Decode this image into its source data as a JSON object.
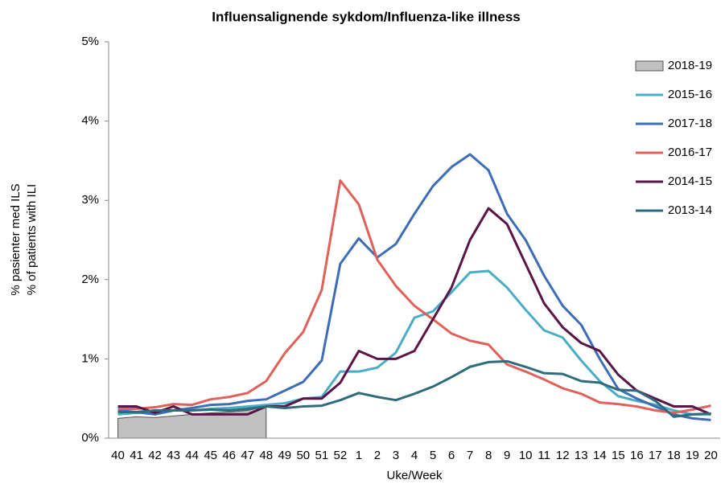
{
  "chart_data": {
    "type": "line",
    "title": "Influensalignende sykdom/Influenza-like illness",
    "x_label": "Uke/Week",
    "y_label": [
      "% pasienter med ILS",
      "% of patients with ILI"
    ],
    "categories": [
      "40",
      "41",
      "42",
      "43",
      "44",
      "45",
      "46",
      "47",
      "48",
      "49",
      "50",
      "51",
      "52",
      "1",
      "2",
      "3",
      "4",
      "5",
      "6",
      "7",
      "8",
      "9",
      "10",
      "11",
      "12",
      "13",
      "14",
      "15",
      "16",
      "17",
      "18",
      "19",
      "20"
    ],
    "ylim": [
      0,
      5
    ],
    "yticks": [
      {
        "value": 0,
        "label": "0%"
      },
      {
        "value": 1,
        "label": "1%"
      },
      {
        "value": 2,
        "label": "2%"
      },
      {
        "value": 3,
        "label": "3%"
      },
      {
        "value": 4,
        "label": "4%"
      },
      {
        "value": 5,
        "label": "5%"
      }
    ],
    "legend": "upper right",
    "series": [
      {
        "name": "2018-19",
        "type": "area",
        "color": "#c0c0c0",
        "values": [
          0.25,
          0.27,
          0.26,
          0.28,
          0.3,
          0.32,
          0.33,
          0.35,
          0.4,
          null,
          null,
          null,
          null,
          null,
          null,
          null,
          null,
          null,
          null,
          null,
          null,
          null,
          null,
          null,
          null,
          null,
          null,
          null,
          null,
          null,
          null,
          null,
          null
        ]
      },
      {
        "name": "2015-16",
        "type": "line",
        "color": "#4bacc6",
        "values": [
          0.3,
          0.32,
          0.33,
          0.35,
          0.35,
          0.37,
          0.38,
          0.4,
          0.42,
          0.44,
          0.5,
          0.52,
          0.84,
          0.84,
          0.89,
          1.08,
          1.52,
          1.6,
          1.84,
          2.09,
          2.11,
          1.9,
          1.62,
          1.36,
          1.27,
          0.98,
          0.72,
          0.53,
          0.47,
          0.42,
          0.35,
          0.3,
          0.3
        ]
      },
      {
        "name": "2017-18",
        "type": "line",
        "color": "#3d6db5",
        "values": [
          0.35,
          0.33,
          0.3,
          0.35,
          0.38,
          0.42,
          0.43,
          0.47,
          0.49,
          0.6,
          0.71,
          0.98,
          2.2,
          2.52,
          2.28,
          2.45,
          2.83,
          3.18,
          3.42,
          3.58,
          3.38,
          2.83,
          2.5,
          2.05,
          1.67,
          1.43,
          1.0,
          0.62,
          0.5,
          0.4,
          0.3,
          0.25,
          0.23
        ]
      },
      {
        "name": "2016-17",
        "type": "line",
        "color": "#e0605a",
        "values": [
          0.37,
          0.37,
          0.39,
          0.43,
          0.42,
          0.49,
          0.52,
          0.57,
          0.72,
          1.07,
          1.34,
          1.87,
          3.25,
          2.95,
          2.25,
          1.92,
          1.67,
          1.5,
          1.32,
          1.23,
          1.18,
          0.93,
          0.84,
          0.74,
          0.63,
          0.56,
          0.45,
          0.43,
          0.4,
          0.35,
          0.32,
          0.36,
          0.41
        ]
      },
      {
        "name": "2014-15",
        "type": "line",
        "color": "#5a1446",
        "values": [
          0.4,
          0.4,
          0.32,
          0.4,
          0.3,
          0.3,
          0.3,
          0.3,
          0.4,
          0.4,
          0.5,
          0.5,
          0.7,
          1.1,
          1.0,
          1.0,
          1.1,
          1.5,
          1.9,
          2.5,
          2.9,
          2.7,
          2.2,
          1.7,
          1.4,
          1.2,
          1.1,
          0.8,
          0.6,
          0.5,
          0.4,
          0.4,
          0.3
        ]
      },
      {
        "name": "2013-14",
        "type": "line",
        "color": "#2e6b7c",
        "values": [
          0.33,
          0.33,
          0.35,
          0.35,
          0.35,
          0.36,
          0.35,
          0.37,
          0.4,
          0.38,
          0.4,
          0.41,
          0.48,
          0.57,
          0.52,
          0.48,
          0.56,
          0.65,
          0.77,
          0.9,
          0.96,
          0.97,
          0.9,
          0.82,
          0.81,
          0.72,
          0.7,
          0.61,
          0.6,
          0.47,
          0.27,
          0.3,
          0.31
        ]
      }
    ]
  }
}
